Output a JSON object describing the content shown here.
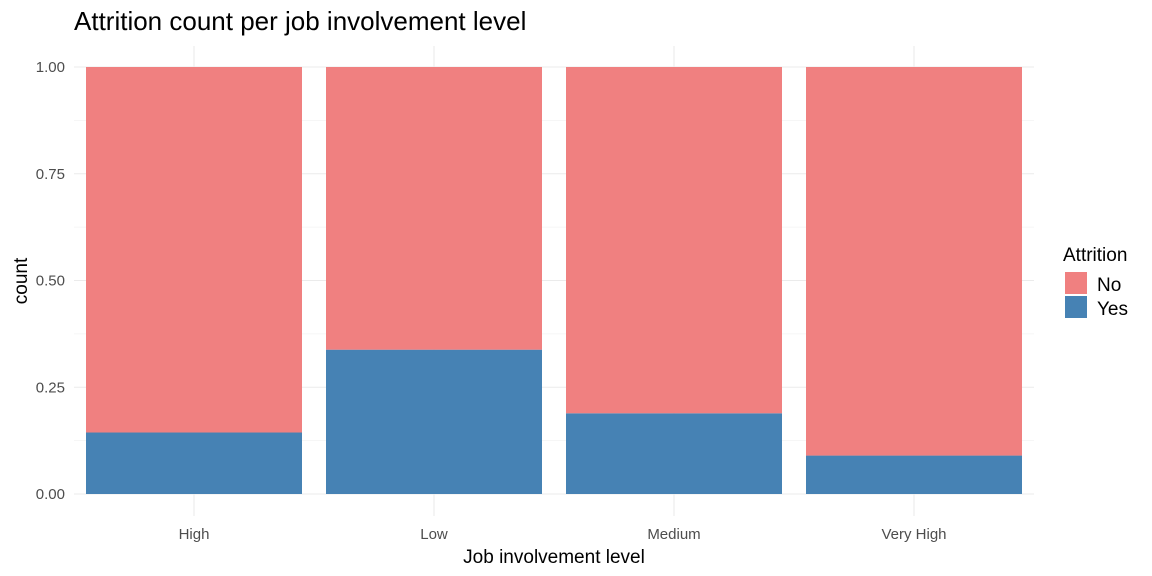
{
  "chart_data": {
    "type": "bar",
    "stacked": true,
    "title": "Attrition count per job involvement level",
    "xlabel": "Job involvement level",
    "ylabel": "count",
    "categories": [
      "High",
      "Low",
      "Medium",
      "Very High"
    ],
    "series": [
      {
        "name": "No",
        "color": "#F08080",
        "values": [
          0.856,
          0.662,
          0.811,
          0.91
        ]
      },
      {
        "name": "Yes",
        "color": "#4682B4",
        "values": [
          0.144,
          0.338,
          0.189,
          0.09
        ]
      }
    ],
    "ylim": [
      0,
      1
    ],
    "yticks": [
      "0.00",
      "0.25",
      "0.50",
      "0.75",
      "1.00"
    ],
    "grid": true,
    "legend": {
      "title": "Attrition",
      "position": "right"
    }
  }
}
